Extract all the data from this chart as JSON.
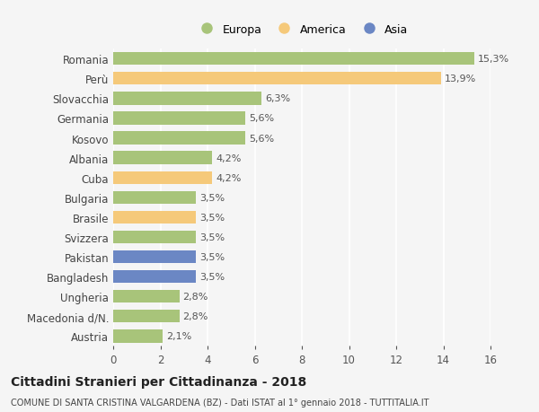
{
  "categories": [
    "Romania",
    "Perù",
    "Slovacchia",
    "Germania",
    "Kosovo",
    "Albania",
    "Cuba",
    "Bulgaria",
    "Brasile",
    "Svizzera",
    "Pakistan",
    "Bangladesh",
    "Ungheria",
    "Macedonia d/N.",
    "Austria"
  ],
  "values": [
    15.3,
    13.9,
    6.3,
    5.6,
    5.6,
    4.2,
    4.2,
    3.5,
    3.5,
    3.5,
    3.5,
    3.5,
    2.8,
    2.8,
    2.1
  ],
  "labels": [
    "15,3%",
    "13,9%",
    "6,3%",
    "5,6%",
    "5,6%",
    "4,2%",
    "4,2%",
    "3,5%",
    "3,5%",
    "3,5%",
    "3,5%",
    "3,5%",
    "2,8%",
    "2,8%",
    "2,1%"
  ],
  "continent": [
    "Europa",
    "America",
    "Europa",
    "Europa",
    "Europa",
    "Europa",
    "America",
    "Europa",
    "America",
    "Europa",
    "Asia",
    "Asia",
    "Europa",
    "Europa",
    "Europa"
  ],
  "colors": {
    "Europa": "#a8c47a",
    "America": "#f5c97a",
    "Asia": "#6b87c4"
  },
  "legend_order": [
    "Europa",
    "America",
    "Asia"
  ],
  "xlim": [
    0,
    16
  ],
  "xticks": [
    0,
    2,
    4,
    6,
    8,
    10,
    12,
    14,
    16
  ],
  "title": "Cittadini Stranieri per Cittadinanza - 2018",
  "subtitle": "COMUNE DI SANTA CRISTINA VALGARDENA (BZ) - Dati ISTAT al 1° gennaio 2018 - TUTTITALIA.IT",
  "background_color": "#f5f5f5",
  "grid_color": "#ffffff",
  "bar_height": 0.65
}
